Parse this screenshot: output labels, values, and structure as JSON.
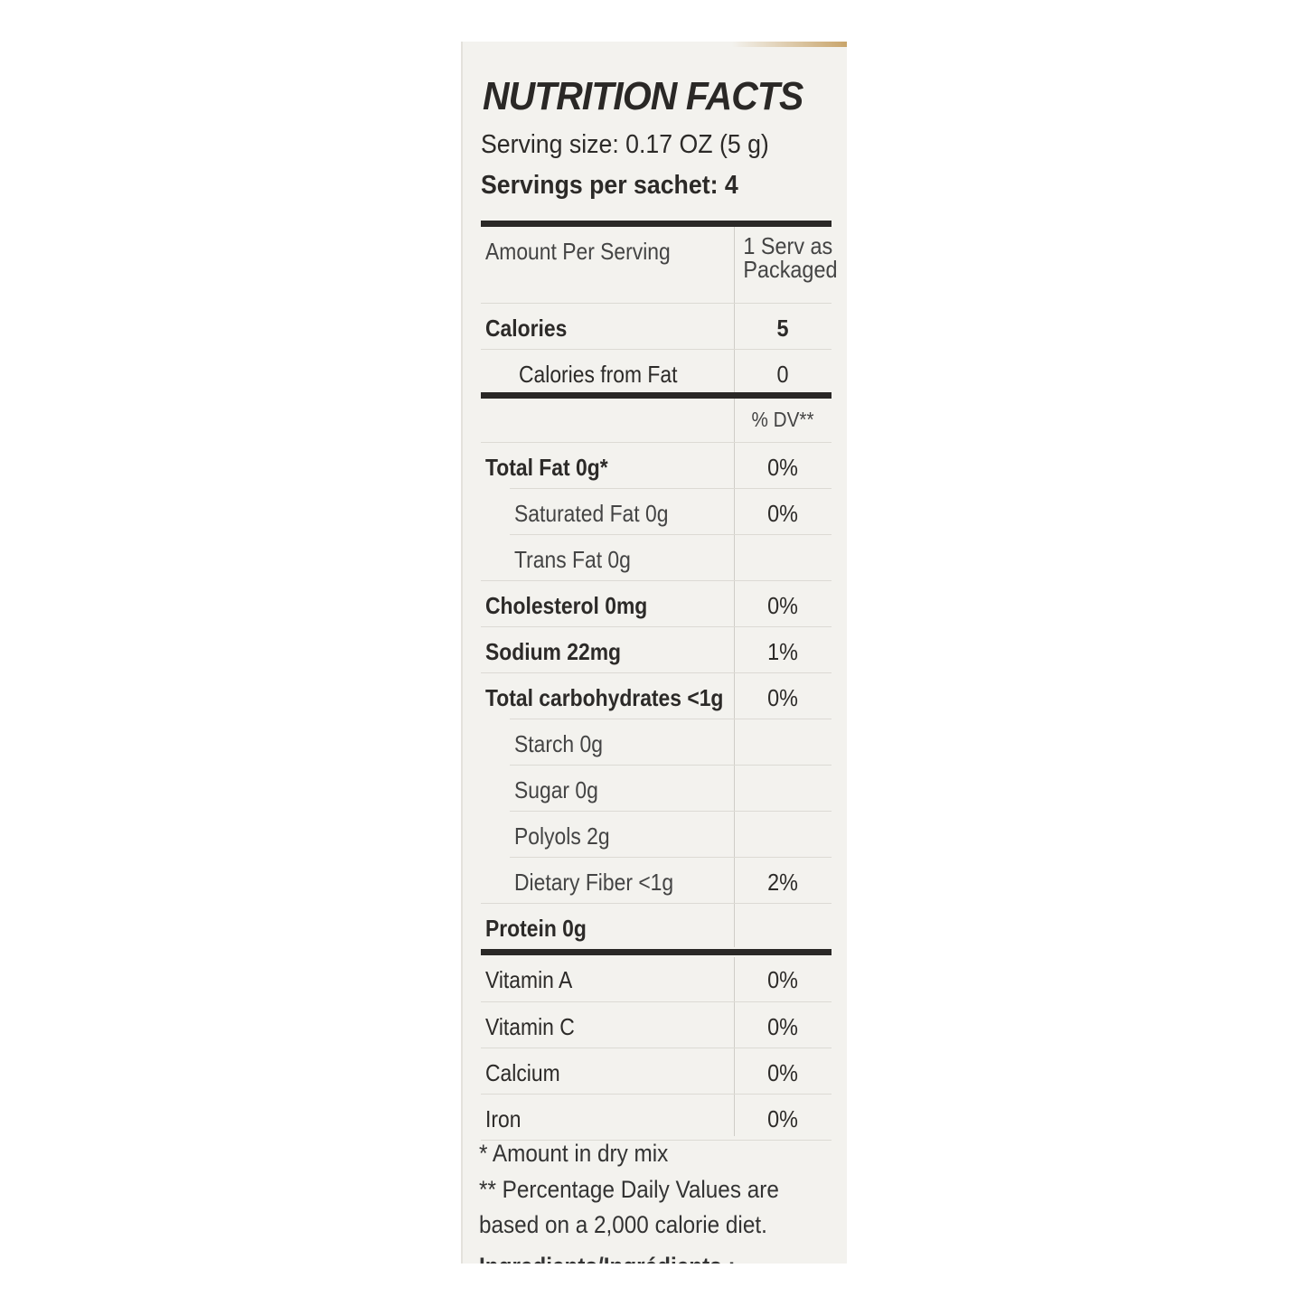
{
  "label": {
    "title": "NUTRITION FACTS",
    "serving_size": "Serving size: 0.17 OZ (5 g)",
    "servings_per": "Servings per sachet: 4",
    "header_left": "Amount Per Serving",
    "header_right_1": "1 Serv as",
    "header_right_2": "Packaged",
    "calories": {
      "label": "Calories",
      "value": "5"
    },
    "calories_fat": {
      "label": "Calories from Fat",
      "value": "0"
    },
    "dv_header": "% DV**",
    "nutrients": [
      {
        "label": "Total Fat  0g*",
        "dv": "0%"
      },
      {
        "label": "Saturated Fat  0g",
        "dv": "0%"
      },
      {
        "label": "Trans Fat  0g",
        "dv": ""
      },
      {
        "label": "Cholesterol  0mg",
        "dv": "0%"
      },
      {
        "label": "Sodium  22mg",
        "dv": "1%"
      },
      {
        "label": "Total carbohydrates <1g",
        "dv": "0%"
      },
      {
        "label": "Starch  0g",
        "dv": ""
      },
      {
        "label": "Sugar  0g",
        "dv": ""
      },
      {
        "label": "Polyols  2g",
        "dv": ""
      },
      {
        "label": "Dietary Fiber  <1g",
        "dv": "2%"
      },
      {
        "label": "Protein  0g",
        "dv": ""
      }
    ],
    "vitamins": [
      {
        "label": "Vitamin A",
        "dv": "0%"
      },
      {
        "label": "Vitamin C",
        "dv": "0%"
      },
      {
        "label": "Calcium",
        "dv": "0%"
      },
      {
        "label": "Iron",
        "dv": "0%"
      }
    ],
    "footnote_1": "* Amount in dry mix",
    "footnote_2": "** Percentage Daily Values are",
    "footnote_3": "based on a 2,000 calorie diet.",
    "ingredients_cut": "Ingredients/Ingrédients :"
  }
}
